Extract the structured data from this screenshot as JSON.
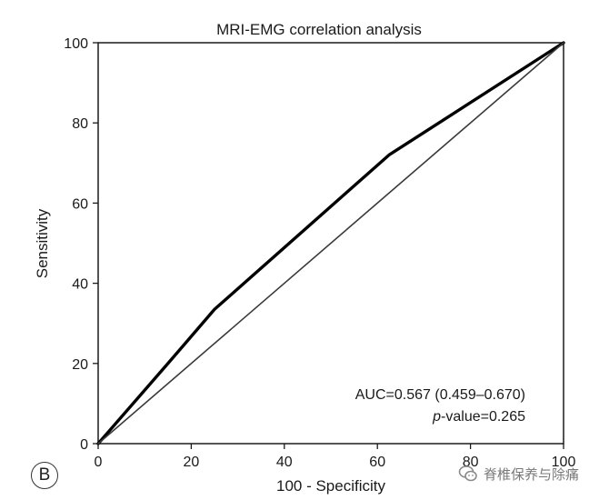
{
  "panel_label": "B",
  "watermark": {
    "text": "脊椎保养与除痛",
    "icon": "wechat-bubble-icon"
  },
  "chart_data": {
    "type": "line",
    "title": "MRI-EMG correlation analysis",
    "xlabel": "100 - Specificity",
    "ylabel": "Sensitivity",
    "xlim": [
      0,
      100
    ],
    "ylim": [
      0,
      100
    ],
    "xticks": [
      0,
      20,
      40,
      60,
      80,
      100
    ],
    "yticks": [
      0,
      20,
      40,
      60,
      80,
      100
    ],
    "grid": false,
    "series": [
      {
        "style": "thick",
        "color": "#000000",
        "x": [
          0,
          15,
          25,
          62.5,
          100
        ],
        "y": [
          0,
          20,
          33.5,
          72,
          100
        ]
      },
      {
        "style": "diagonal",
        "color": "#3a3a3a",
        "x": [
          0,
          100
        ],
        "y": [
          0,
          100
        ]
      }
    ],
    "annotations": {
      "auc": "AUC=0.567 (0.459–0.670)",
      "p_italic": "p",
      "p_rest": "-value=0.265"
    }
  }
}
